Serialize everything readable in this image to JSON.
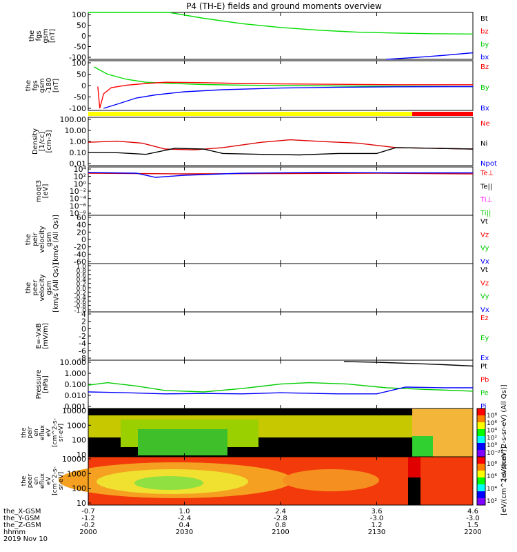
{
  "chart_data": [
    {
      "type": "line",
      "title": "P4 (TH-E) fields and ground moments overview",
      "ylabel_lines": [
        "the",
        "fgs",
        "gsm",
        "[nT]"
      ],
      "yticks": [
        100,
        50,
        0,
        -50,
        -100
      ],
      "ylim": [
        -100,
        100
      ],
      "legend": [
        {
          "label": "Bt",
          "color": "#000000"
        },
        {
          "label": "bz",
          "color": "#ff0000"
        },
        {
          "label": "by",
          "color": "#00cc00"
        },
        {
          "label": "bx",
          "color": "#0000ff"
        }
      ],
      "series": [
        {
          "name": "by",
          "color": "#00dd00",
          "points": [
            [
              2000,
              100
            ],
            [
              2005,
              100
            ],
            [
              2010,
              100
            ],
            [
              2020,
              100
            ],
            [
              2030,
              100
            ],
            [
              2042,
              100
            ],
            [
              2060,
              75
            ],
            [
              2080,
              52
            ],
            [
              2100,
              36
            ],
            [
              2120,
              24
            ],
            [
              2140,
              16
            ],
            [
              2160,
              12
            ],
            [
              2180,
              9
            ],
            [
              2200,
              8
            ]
          ]
        },
        {
          "name": "bx",
          "color": "#0000ff",
          "points": [
            [
              2155,
              -100
            ],
            [
              2170,
              -92
            ],
            [
              2185,
              -83
            ],
            [
              2200,
              -72
            ]
          ]
        }
      ]
    },
    {
      "type": "line",
      "ylabel_lines": [
        "the",
        "fgs",
        "gsm",
        "-180",
        "[nT]"
      ],
      "yticks": [
        100,
        50,
        0,
        -50,
        -100
      ],
      "ylim": [
        -120,
        120
      ],
      "legend": [
        {
          "label": "Bz",
          "color": "#ff0000"
        },
        {
          "label": "By",
          "color": "#00cc00"
        },
        {
          "label": "Bx",
          "color": "#0000ff"
        }
      ],
      "series": [
        {
          "name": "By",
          "color": "#00dd00",
          "points": [
            [
              2003,
              90
            ],
            [
              2010,
              55
            ],
            [
              2020,
              30
            ],
            [
              2030,
              16
            ],
            [
              2045,
              10
            ],
            [
              2060,
              5
            ],
            [
              2080,
              2
            ],
            [
              2100,
              0
            ],
            [
              2130,
              -2
            ],
            [
              2160,
              -3
            ],
            [
              2200,
              -5
            ]
          ]
        },
        {
          "name": "Bz",
          "color": "#ff0000",
          "points": [
            [
              2005,
              -5
            ],
            [
              2006,
              -110
            ],
            [
              2008,
              -40
            ],
            [
              2012,
              -10
            ],
            [
              2020,
              2
            ],
            [
              2030,
              10
            ],
            [
              2040,
              16
            ],
            [
              2060,
              14
            ],
            [
              2080,
              10
            ],
            [
              2100,
              8
            ],
            [
              2130,
              6
            ],
            [
              2160,
              4
            ],
            [
              2200,
              4
            ]
          ]
        },
        {
          "name": "Bx",
          "color": "#0000ff",
          "points": [
            [
              2008,
              -110
            ],
            [
              2015,
              -90
            ],
            [
              2025,
              -60
            ],
            [
              2035,
              -45
            ],
            [
              2050,
              -30
            ],
            [
              2070,
              -20
            ],
            [
              2100,
              -12
            ],
            [
              2130,
              -8
            ],
            [
              2160,
              -6
            ],
            [
              2200,
              -5
            ]
          ]
        }
      ]
    },
    {
      "type": "line",
      "ylabel_lines": [
        "Density",
        "[1/cc]",
        "[cm-3]"
      ],
      "ylog": true,
      "yticks": [
        "100.00",
        "10.00",
        "1.00",
        "0.10",
        "0.01"
      ],
      "ylim": [
        0.01,
        200
      ],
      "legend": [
        {
          "label": "Ne",
          "color": "#ff0000"
        },
        {
          "label": "Ni",
          "color": "#000000"
        },
        {
          "label": "Npot",
          "color": "#0000ff"
        }
      ],
      "series": [
        {
          "name": "Ne",
          "color": "#dd0000",
          "points": [
            [
              2000,
              1.2
            ],
            [
              2015,
              1.5
            ],
            [
              2028,
              1.0
            ],
            [
              2040,
              0.3
            ],
            [
              2055,
              0.25
            ],
            [
              2070,
              0.4
            ],
            [
              2090,
              1.2
            ],
            [
              2105,
              2.0
            ],
            [
              2125,
              1.3
            ],
            [
              2140,
              1.0
            ],
            [
              2160,
              0.4
            ],
            [
              2180,
              0.35
            ],
            [
              2200,
              0.3
            ]
          ]
        },
        {
          "name": "Ni",
          "color": "#000000",
          "points": [
            [
              2000,
              0.15
            ],
            [
              2015,
              0.14
            ],
            [
              2030,
              0.1
            ],
            [
              2045,
              0.35
            ],
            [
              2060,
              0.3
            ],
            [
              2070,
              0.12
            ],
            [
              2090,
              0.1
            ],
            [
              2110,
              0.09
            ],
            [
              2130,
              0.12
            ],
            [
              2150,
              0.12
            ],
            [
              2160,
              0.4
            ],
            [
              2180,
              0.35
            ],
            [
              2200,
              0.3
            ]
          ]
        }
      ]
    },
    {
      "type": "line",
      "ylabel_lines": [
        "moqt3",
        "[eV]"
      ],
      "ylog": true,
      "yticks": [
        "10⁴",
        "10²",
        "10⁰",
        "10⁻²",
        "10⁻⁴",
        "10⁻⁶",
        "10⁻⁸"
      ],
      "ylim": [
        -9,
        5
      ],
      "legend": [
        {
          "label": "Te⊥",
          "color": "#ff0000"
        },
        {
          "label": "Te||",
          "color": "#000000"
        },
        {
          "label": "Ti⊥",
          "color": "#ff00ff"
        },
        {
          "label": "Ti||",
          "color": "#00cc00"
        }
      ],
      "series": [
        {
          "name": "Te",
          "color": "#dd0000",
          "points": [
            [
              2000,
              3.2
            ],
            [
              2050,
              3.0
            ],
            [
              2100,
              3.1
            ],
            [
              2150,
              3.2
            ],
            [
              2200,
              3.0
            ]
          ]
        },
        {
          "name": "Ti",
          "color": "#0000ff",
          "points": [
            [
              2000,
              3.4
            ],
            [
              2025,
              3.2
            ],
            [
              2035,
              2.0
            ],
            [
              2050,
              2.6
            ],
            [
              2080,
              3.2
            ],
            [
              2120,
              3.4
            ],
            [
              2160,
              3.3
            ],
            [
              2200,
              3.3
            ]
          ]
        }
      ]
    },
    {
      "type": "line",
      "ylabel_lines": [
        "the",
        "peir",
        "velocity",
        "gsm",
        "[km/s (All Qs)]"
      ],
      "yticks": [
        60,
        40,
        20,
        0,
        -20,
        -40,
        -60
      ],
      "ylim": [
        -60,
        60
      ],
      "legend": [
        {
          "label": "Vt",
          "color": "#000000"
        },
        {
          "label": "Vz",
          "color": "#ff0000"
        },
        {
          "label": "Vy",
          "color": "#00cc00"
        },
        {
          "label": "Vx",
          "color": "#0000ff"
        }
      ],
      "series": []
    },
    {
      "type": "line",
      "ylabel_lines": [
        "the",
        "peer",
        "velocity",
        "gsm",
        "[km/s (All Qs)]"
      ],
      "yticks": [
        "1.0",
        "0.8",
        "0.6",
        "0.4",
        "0.2",
        "0.0",
        "-0.2",
        "-0.4",
        "-0.6",
        "-0.8",
        "-1.0"
      ],
      "ylim": [
        -1,
        1
      ],
      "legend": [
        {
          "label": "Vt",
          "color": "#000000"
        },
        {
          "label": "Vz",
          "color": "#ff0000"
        },
        {
          "label": "Vy",
          "color": "#00cc00"
        },
        {
          "label": "Vx",
          "color": "#0000ff"
        }
      ],
      "series": []
    },
    {
      "type": "line",
      "ylabel_lines": [
        "E=-VxB",
        "[mV/m]"
      ],
      "yticks": [
        4,
        2,
        0,
        -2,
        -4,
        -6,
        -8
      ],
      "ylim": [
        -8,
        4
      ],
      "legend": [
        {
          "label": "Ez",
          "color": "#ff0000"
        },
        {
          "label": "Ey",
          "color": "#00cc00"
        },
        {
          "label": "Ex",
          "color": "#0000ff"
        }
      ],
      "series": []
    },
    {
      "type": "line",
      "ylabel_lines": [
        "Pressure",
        "[nPa]"
      ],
      "ylog": true,
      "yticks": [
        "10.000",
        "1.000",
        "0.100",
        "0.010",
        "0.001"
      ],
      "ylim": [
        0.001,
        20
      ],
      "legend": [
        {
          "label": "Pt",
          "color": "#000000"
        },
        {
          "label": "Pb",
          "color": "#ff0000"
        },
        {
          "label": "Pe",
          "color": "#00cc00"
        },
        {
          "label": "Pi",
          "color": "#0000ff"
        }
      ],
      "series": [
        {
          "name": "Pt",
          "color": "#000000",
          "points": [
            [
              2133,
              15
            ],
            [
              2150,
              13
            ],
            [
              2170,
              10
            ],
            [
              2185,
              8
            ],
            [
              2200,
              6
            ]
          ]
        },
        {
          "name": "Pe",
          "color": "#00cc00",
          "points": [
            [
              2000,
              0.12
            ],
            [
              2010,
              0.2
            ],
            [
              2025,
              0.1
            ],
            [
              2040,
              0.04
            ],
            [
              2060,
              0.03
            ],
            [
              2080,
              0.06
            ],
            [
              2100,
              0.15
            ],
            [
              2115,
              0.2
            ],
            [
              2135,
              0.15
            ],
            [
              2155,
              0.07
            ],
            [
              2175,
              0.05
            ],
            [
              2200,
              0.035
            ]
          ]
        },
        {
          "name": "Pi",
          "color": "#0000ff",
          "points": [
            [
              2000,
              0.03
            ],
            [
              2020,
              0.025
            ],
            [
              2040,
              0.02
            ],
            [
              2060,
              0.022
            ],
            [
              2080,
              0.02
            ],
            [
              2100,
              0.025
            ],
            [
              2130,
              0.02
            ],
            [
              2150,
              0.02
            ],
            [
              2165,
              0.08
            ],
            [
              2185,
              0.07
            ],
            [
              2200,
              0.07
            ]
          ]
        }
      ]
    },
    {
      "type": "heatmap",
      "ylabel_lines": [
        "the",
        "peir",
        "en",
        "eflux",
        "eV",
        "[cm^2-s-",
        "sr-eV]"
      ],
      "ylog": true,
      "yticks": [
        "10000",
        "1000",
        "100",
        "10"
      ],
      "ylim": [
        10,
        30000
      ],
      "colorbar": {
        "label": "[eV/(cm^2-s-sr-eV) (All Qs)]",
        "ticks": [
          "10⁸",
          "10⁶",
          "10⁴",
          "10²",
          "10⁰",
          "10⁻²"
        ]
      }
    },
    {
      "type": "heatmap",
      "ylabel_lines": [
        "the",
        "peer",
        "en",
        "eflux",
        "eV",
        "[cm^2-s-",
        "sr-eV]"
      ],
      "ylog": true,
      "yticks": [
        "10000",
        "1000",
        "100",
        "10"
      ],
      "ylim": [
        8,
        30000
      ],
      "colorbar": {
        "label": "[eV/(cm^2-s-sr-eV)]",
        "ticks": [
          "10⁸",
          "10⁶",
          "10⁴",
          "10²"
        ]
      }
    }
  ],
  "xaxis": {
    "row_labels": [
      "the_X-GSM",
      "the_Y-GSM",
      "the_Z-GSM",
      "hhmm",
      "2019 Nov 10"
    ],
    "ticks": [
      {
        "x": 2000,
        "vals": [
          "-0.7",
          "-1.2",
          "-0.2",
          "2000"
        ]
      },
      {
        "x": 2030,
        "vals": [
          "1.0",
          "-2.4",
          "0.4",
          "2030"
        ]
      },
      {
        "x": 2100,
        "vals": [
          "2.4",
          "-2.8",
          "0.8",
          "2100"
        ]
      },
      {
        "x": 2130,
        "vals": [
          "3.6",
          "-3.0",
          "1.2",
          "2130"
        ]
      },
      {
        "x": 2200,
        "vals": [
          "4.6",
          "-3.0",
          "1.5",
          "2200"
        ]
      }
    ]
  },
  "colors": {
    "mode_bar_yellow": "#ffff00",
    "mode_bar_red": "#ff0000",
    "axis": "#000000"
  }
}
